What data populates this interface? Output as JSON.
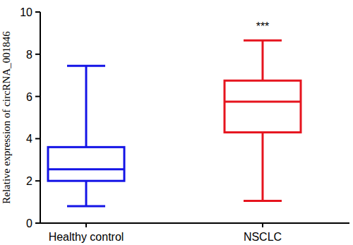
{
  "chart_data": {
    "type": "box",
    "y_label": "Relative expression of circRNA_001846",
    "categories": [
      "Healthy control",
      "NSCLC"
    ],
    "min": [
      0.8,
      1.05
    ],
    "q1": [
      2.0,
      4.3
    ],
    "median": [
      2.55,
      5.75
    ],
    "q3": [
      3.6,
      6.75
    ],
    "max": [
      7.45,
      8.65
    ],
    "colors": [
      "#1414e6",
      "#e6141e"
    ],
    "ylim": [
      0,
      10
    ],
    "yticks": [
      0,
      2,
      4,
      6,
      8,
      10
    ],
    "grid": false,
    "annotations": [
      {
        "text": "***",
        "category": "NSCLC"
      }
    ]
  }
}
